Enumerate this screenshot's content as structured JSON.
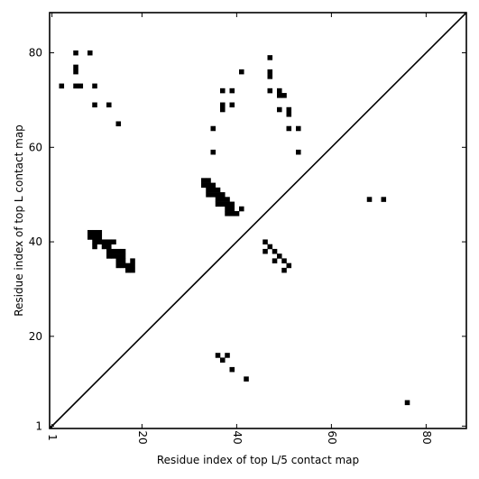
{
  "chart_data": {
    "type": "heatmap",
    "title": "",
    "xlabel": "Residue index of top L/5 contact map",
    "ylabel": "Residue index of top L contact map",
    "xlim": [
      0.5,
      88.5
    ],
    "ylim": [
      0.5,
      88.5
    ],
    "x_ticks": [
      1,
      20,
      40,
      60,
      80
    ],
    "y_ticks": [
      1,
      20,
      40,
      60,
      80
    ],
    "tick_labels_x": [
      "1",
      "20",
      "40",
      "60",
      "80"
    ],
    "tick_labels_y": [
      "1",
      "20",
      "40",
      "60",
      "80"
    ],
    "diagonal": true,
    "grid": false,
    "colors": {
      "cell": "#000000",
      "background": "#ffffff",
      "frame": "#000000"
    },
    "upper_contacts": [
      [
        3,
        73
      ],
      [
        6,
        73
      ],
      [
        7,
        73
      ],
      [
        6,
        77
      ],
      [
        6,
        76
      ],
      [
        6,
        80
      ],
      [
        9,
        80
      ],
      [
        10,
        73
      ],
      [
        10,
        69
      ],
      [
        13,
        69
      ],
      [
        15,
        65
      ],
      [
        41,
        76
      ],
      [
        47,
        79
      ],
      [
        47,
        76
      ],
      [
        47,
        75
      ],
      [
        47,
        72
      ],
      [
        37,
        72
      ],
      [
        39,
        72
      ],
      [
        37,
        69
      ],
      [
        37,
        68
      ],
      [
        39,
        69
      ],
      [
        49,
        72
      ],
      [
        49,
        71
      ],
      [
        50,
        71
      ],
      [
        49,
        68
      ],
      [
        51,
        68
      ],
      [
        51,
        67
      ],
      [
        51,
        64
      ],
      [
        53,
        64
      ],
      [
        53,
        59
      ],
      [
        35,
        64
      ],
      [
        35,
        59
      ],
      [
        33,
        53
      ],
      [
        34,
        53
      ],
      [
        33,
        52
      ],
      [
        34,
        52
      ],
      [
        35,
        52
      ],
      [
        34,
        51
      ],
      [
        35,
        51
      ],
      [
        36,
        51
      ],
      [
        34,
        50
      ],
      [
        35,
        50
      ],
      [
        36,
        50
      ],
      [
        37,
        50
      ],
      [
        36,
        49
      ],
      [
        37,
        49
      ],
      [
        38,
        49
      ],
      [
        36,
        48
      ],
      [
        37,
        48
      ],
      [
        38,
        48
      ],
      [
        39,
        48
      ],
      [
        38,
        47
      ],
      [
        39,
        47
      ],
      [
        41,
        47
      ],
      [
        38,
        46
      ],
      [
        39,
        46
      ],
      [
        40,
        46
      ],
      [
        68,
        49
      ],
      [
        71,
        49
      ],
      [
        9,
        42
      ],
      [
        10,
        42
      ],
      [
        11,
        42
      ],
      [
        9,
        41
      ],
      [
        10,
        41
      ],
      [
        11,
        41
      ],
      [
        10,
        40
      ],
      [
        11,
        40
      ],
      [
        12,
        40
      ],
      [
        13,
        40
      ],
      [
        14,
        40
      ],
      [
        10,
        39
      ],
      [
        12,
        39
      ],
      [
        13,
        39
      ],
      [
        13,
        38
      ],
      [
        14,
        38
      ],
      [
        15,
        38
      ],
      [
        16,
        38
      ],
      [
        13,
        37
      ],
      [
        14,
        37
      ],
      [
        15,
        37
      ],
      [
        16,
        37
      ],
      [
        15,
        36
      ],
      [
        16,
        36
      ],
      [
        18,
        36
      ],
      [
        15,
        35
      ],
      [
        16,
        35
      ],
      [
        17,
        35
      ],
      [
        18,
        35
      ],
      [
        17,
        34
      ],
      [
        18,
        34
      ],
      [
        46,
        40
      ],
      [
        47,
        39
      ],
      [
        46,
        38
      ],
      [
        48,
        38
      ],
      [
        49,
        37
      ],
      [
        48,
        36
      ],
      [
        50,
        36
      ],
      [
        51,
        35
      ],
      [
        50,
        34
      ]
    ],
    "lower_contacts": [
      [
        36,
        16
      ],
      [
        38,
        16
      ],
      [
        37,
        15
      ],
      [
        39,
        13
      ],
      [
        42,
        11
      ],
      [
        76,
        6
      ]
    ]
  }
}
